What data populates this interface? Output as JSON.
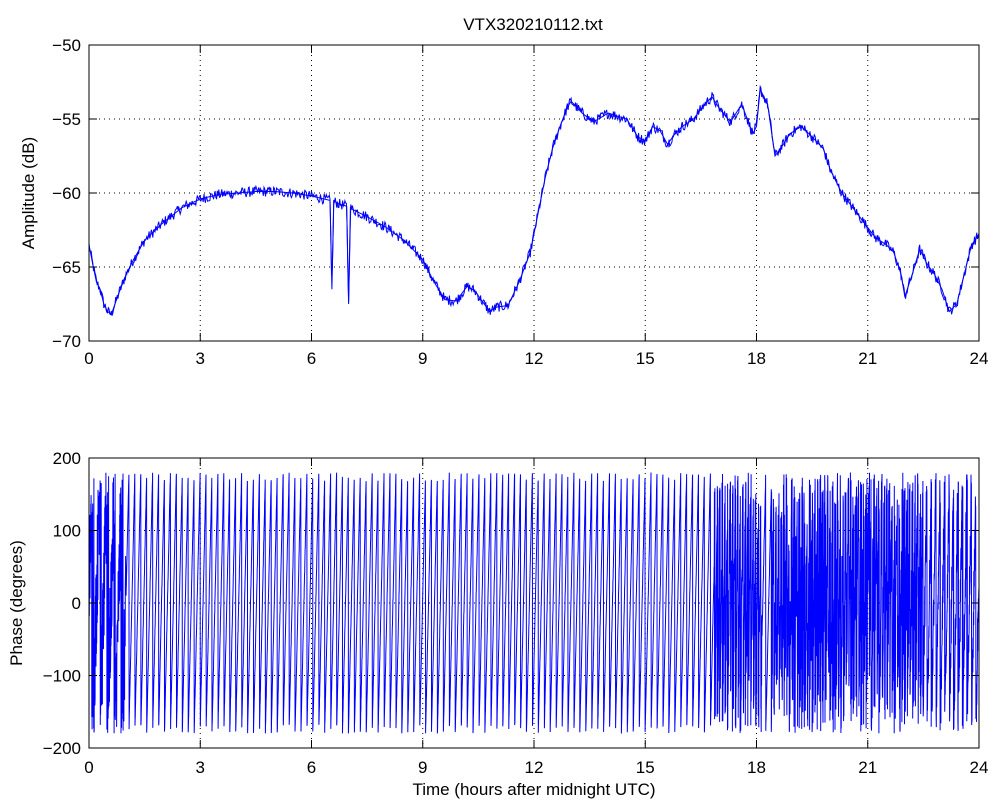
{
  "figure": {
    "title": "VTX320210112.txt",
    "line_color": "#0000ff"
  },
  "chart_data": [
    {
      "type": "line",
      "title": "VTX320210112.txt",
      "xlabel": "",
      "ylabel": "Amplitude (dB)",
      "xlim": [
        0,
        24
      ],
      "ylim": [
        -70,
        -50
      ],
      "xticks": [
        "0",
        "3",
        "6",
        "9",
        "12",
        "15",
        "18",
        "21",
        "24"
      ],
      "yticks": [
        "−70",
        "−65",
        "−60",
        "−55",
        "−50"
      ],
      "grid": true,
      "series": [
        {
          "color": "#0000ff",
          "noise": 0.35,
          "x": [
            0,
            0.1,
            0.2,
            0.3,
            0.4,
            0.5,
            0.6,
            0.7,
            0.8,
            1.0,
            1.2,
            1.5,
            2.0,
            2.5,
            3.0,
            3.5,
            4.0,
            4.5,
            5.0,
            5.5,
            6.0,
            6.5,
            6.55,
            6.6,
            6.65,
            6.7,
            6.95,
            7.0,
            7.05,
            7.1,
            7.5,
            8.0,
            8.5,
            9.0,
            9.3,
            9.6,
            9.9,
            10.2,
            10.4,
            10.6,
            10.8,
            11.0,
            11.3,
            11.6,
            11.9,
            12.1,
            12.3,
            12.5,
            12.7,
            12.9,
            13.0,
            13.3,
            13.6,
            14.0,
            14.5,
            14.8,
            15.0,
            15.2,
            15.4,
            15.6,
            15.8,
            16.0,
            16.3,
            16.6,
            16.8,
            17.0,
            17.3,
            17.6,
            17.9,
            18.0,
            18.1,
            18.3,
            18.5,
            18.7,
            18.9,
            19.2,
            19.5,
            19.8,
            20.0,
            20.3,
            20.6,
            20.9,
            21.2,
            21.5,
            21.7,
            21.9,
            22.0,
            22.2,
            22.4,
            22.6,
            22.8,
            23.0,
            23.2,
            23.4,
            23.6,
            23.8,
            24.0
          ],
          "y": [
            -63.5,
            -64.8,
            -66.0,
            -66.5,
            -67.5,
            -68.0,
            -68.2,
            -67.5,
            -66.8,
            -65.5,
            -64.5,
            -63.2,
            -62.0,
            -61.0,
            -60.4,
            -60.1,
            -60.0,
            -59.9,
            -59.9,
            -60.0,
            -60.2,
            -60.5,
            -66.5,
            -60.6,
            -60.6,
            -60.7,
            -60.9,
            -67.5,
            -61.0,
            -61.1,
            -61.6,
            -62.3,
            -63.2,
            -64.5,
            -66.0,
            -67.2,
            -67.3,
            -66.3,
            -66.6,
            -67.3,
            -68.0,
            -67.7,
            -67.6,
            -66.0,
            -64.0,
            -61.5,
            -59.0,
            -57.0,
            -55.5,
            -54.2,
            -53.8,
            -54.6,
            -55.2,
            -54.6,
            -55.0,
            -56.2,
            -56.5,
            -55.5,
            -55.8,
            -56.7,
            -56.0,
            -55.5,
            -55.0,
            -54.0,
            -53.5,
            -54.3,
            -55.2,
            -54.0,
            -56.0,
            -55.5,
            -53.0,
            -54.0,
            -57.5,
            -56.8,
            -56.0,
            -55.5,
            -56.2,
            -57.0,
            -58.5,
            -60.0,
            -61.0,
            -62.0,
            -63.0,
            -63.5,
            -64.0,
            -65.5,
            -67.0,
            -65.5,
            -63.8,
            -64.8,
            -65.5,
            -66.5,
            -68.0,
            -67.5,
            -65.5,
            -63.5,
            -62.8
          ]
        }
      ]
    },
    {
      "type": "line",
      "title": "",
      "xlabel": "Time (hours after midnight UTC)",
      "ylabel": "Phase (degrees)",
      "xlim": [
        0,
        24
      ],
      "ylim": [
        -200,
        200
      ],
      "xticks": [
        "0",
        "3",
        "6",
        "9",
        "12",
        "15",
        "18",
        "21",
        "24"
      ],
      "yticks": [
        "−200",
        "−100",
        "0",
        "100",
        "200"
      ],
      "grid": true,
      "series": [
        {
          "color": "#0000ff",
          "wrap": [
            -180,
            180
          ],
          "segments": [
            {
              "x": [
                0.0,
                1.0
              ],
              "rate_deg_per_hr": 1800,
              "noise": 80
            },
            {
              "x": [
                1.0,
                16.85
              ],
              "rate_deg_per_hr": 2250,
              "noise": 3
            },
            {
              "x": [
                16.85,
                18.15
              ],
              "rate_deg_per_hr": 5200,
              "noise": 60
            },
            {
              "x": [
                18.15,
                18.4
              ],
              "rate_deg_per_hr": 2250,
              "noise": 5
            },
            {
              "x": [
                18.4,
                22.5
              ],
              "rate_deg_per_hr": 5200,
              "noise": 90
            },
            {
              "x": [
                22.5,
                24.0
              ],
              "rate_deg_per_hr": 3000,
              "noise": 40
            }
          ]
        }
      ]
    }
  ]
}
